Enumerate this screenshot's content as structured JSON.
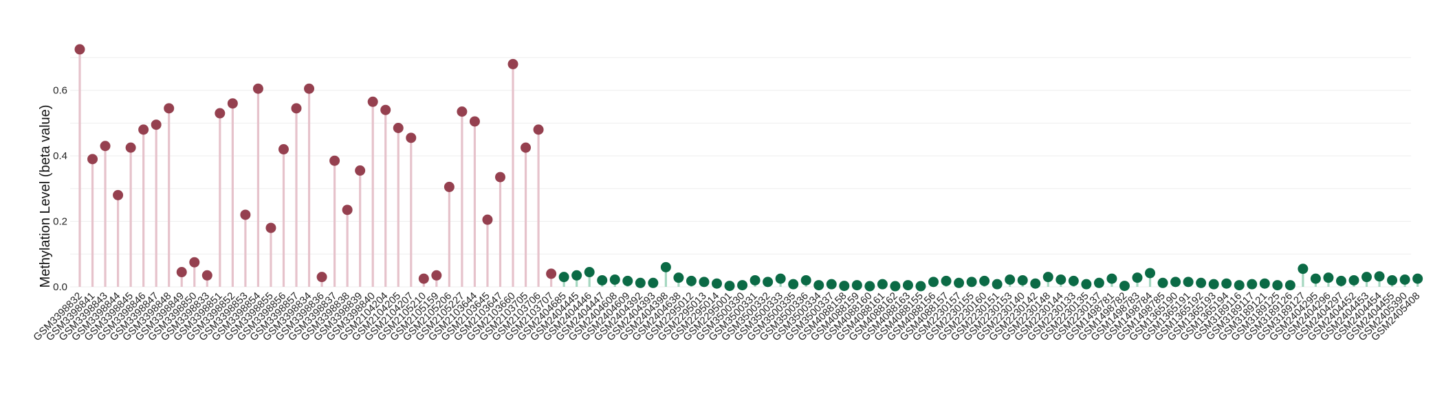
{
  "chart_data": {
    "type": "lollipop",
    "ylabel": "Methylation Level (beta value)",
    "ylim": [
      0,
      0.75
    ],
    "yticks": [
      "0.0",
      "0.2",
      "0.4",
      "0.6"
    ],
    "grid": true,
    "colors": {
      "group_a_dot": "#95404f",
      "group_a_stem": "#e6c2cb",
      "group_b_dot": "#0b6a45",
      "group_b_stem": "#a5d7c0",
      "grid": "#eeeeee"
    },
    "series": [
      {
        "color_key": "group_a",
        "points": [
          {
            "x": "GSM3398832",
            "y": 0.725
          },
          {
            "x": "GSM3398841",
            "y": 0.39
          },
          {
            "x": "GSM3398843",
            "y": 0.43
          },
          {
            "x": "GSM3398844",
            "y": 0.28
          },
          {
            "x": "GSM3398845",
            "y": 0.425
          },
          {
            "x": "GSM3398846",
            "y": 0.48
          },
          {
            "x": "GSM3398847",
            "y": 0.495
          },
          {
            "x": "GSM3398848",
            "y": 0.545
          },
          {
            "x": "GSM3398849",
            "y": 0.045
          },
          {
            "x": "GSM3398850",
            "y": 0.075
          },
          {
            "x": "GSM3398833",
            "y": 0.035
          },
          {
            "x": "GSM3398851",
            "y": 0.53
          },
          {
            "x": "GSM3398852",
            "y": 0.56
          },
          {
            "x": "GSM3398853",
            "y": 0.22
          },
          {
            "x": "GSM3398854",
            "y": 0.605
          },
          {
            "x": "GSM3398855",
            "y": 0.18
          },
          {
            "x": "GSM3398856",
            "y": 0.42
          },
          {
            "x": "GSM3398857",
            "y": 0.545
          },
          {
            "x": "GSM3398834",
            "y": 0.605
          },
          {
            "x": "GSM3398836",
            "y": 0.03
          },
          {
            "x": "GSM3398837",
            "y": 0.385
          },
          {
            "x": "GSM3398838",
            "y": 0.235
          },
          {
            "x": "GSM3398839",
            "y": 0.355
          },
          {
            "x": "GSM3398840",
            "y": 0.565
          },
          {
            "x": "GSM2104204",
            "y": 0.54
          },
          {
            "x": "GSM2104205",
            "y": 0.485
          },
          {
            "x": "GSM2104207",
            "y": 0.455
          },
          {
            "x": "GSM2105210",
            "y": 0.025
          },
          {
            "x": "GSM2105159",
            "y": 0.035
          },
          {
            "x": "GSM2105206",
            "y": 0.305
          },
          {
            "x": "GSM2105227",
            "y": 0.535
          },
          {
            "x": "GSM2103644",
            "y": 0.505
          },
          {
            "x": "GSM2103645",
            "y": 0.205
          },
          {
            "x": "GSM2103647",
            "y": 0.335
          },
          {
            "x": "GSM2103660",
            "y": 0.68
          },
          {
            "x": "GSM2103705",
            "y": 0.425
          },
          {
            "x": "GSM2103706",
            "y": 0.48
          },
          {
            "x": "GSM2103707",
            "y": 0.04
          }
        ]
      },
      {
        "color_key": "group_b",
        "points": [
          {
            "x": "GSM2404685",
            "y": 0.03
          },
          {
            "x": "GSM2404445",
            "y": 0.035
          },
          {
            "x": "GSM2404446",
            "y": 0.045
          },
          {
            "x": "GSM2404447",
            "y": 0.02
          },
          {
            "x": "GSM2404608",
            "y": 0.022
          },
          {
            "x": "GSM2404609",
            "y": 0.018
          },
          {
            "x": "GSM2404392",
            "y": 0.012
          },
          {
            "x": "GSM2404393",
            "y": 0.012
          },
          {
            "x": "GSM2404398",
            "y": 0.06
          },
          {
            "x": "GSM2404638",
            "y": 0.028
          },
          {
            "x": "GSM2295012",
            "y": 0.018
          },
          {
            "x": "GSM2295013",
            "y": 0.015
          },
          {
            "x": "GSM2295014",
            "y": 0.01
          },
          {
            "x": "GSM2295001",
            "y": 0.003
          },
          {
            "x": "GSM3500330",
            "y": 0.005
          },
          {
            "x": "GSM3500331",
            "y": 0.02
          },
          {
            "x": "GSM3500332",
            "y": 0.015
          },
          {
            "x": "GSM3500333",
            "y": 0.025
          },
          {
            "x": "GSM3500335",
            "y": 0.008
          },
          {
            "x": "GSM3500336",
            "y": 0.02
          },
          {
            "x": "GSM3500334",
            "y": 0.005
          },
          {
            "x": "GSM3500337",
            "y": 0.008
          },
          {
            "x": "GSM4088158",
            "y": 0.003
          },
          {
            "x": "GSM4088159",
            "y": 0.005
          },
          {
            "x": "GSM4088160",
            "y": 0.002
          },
          {
            "x": "GSM4088161",
            "y": 0.008
          },
          {
            "x": "GSM4088162",
            "y": 0.002
          },
          {
            "x": "GSM4088163",
            "y": 0.005
          },
          {
            "x": "GSM4088155",
            "y": 0.002
          },
          {
            "x": "GSM4088156",
            "y": 0.015
          },
          {
            "x": "GSM4088157",
            "y": 0.018
          },
          {
            "x": "GSM2230157",
            "y": 0.012
          },
          {
            "x": "GSM2230155",
            "y": 0.015
          },
          {
            "x": "GSM2230160",
            "y": 0.018
          },
          {
            "x": "GSM2230151",
            "y": 0.008
          },
          {
            "x": "GSM2230153",
            "y": 0.022
          },
          {
            "x": "GSM2230140",
            "y": 0.02
          },
          {
            "x": "GSM2230142",
            "y": 0.01
          },
          {
            "x": "GSM2230148",
            "y": 0.03
          },
          {
            "x": "GSM2230144",
            "y": 0.022
          },
          {
            "x": "GSM2230133",
            "y": 0.018
          },
          {
            "x": "GSM2230135",
            "y": 0.008
          },
          {
            "x": "GSM2230137",
            "y": 0.012
          },
          {
            "x": "GSM1498781",
            "y": 0.025
          },
          {
            "x": "GSM1498782",
            "y": 0.003
          },
          {
            "x": "GSM1498783",
            "y": 0.028
          },
          {
            "x": "GSM1498784",
            "y": 0.042
          },
          {
            "x": "GSM1498785",
            "y": 0.012
          },
          {
            "x": "GSM1365190",
            "y": 0.015
          },
          {
            "x": "GSM1365191",
            "y": 0.015
          },
          {
            "x": "GSM1365192",
            "y": 0.012
          },
          {
            "x": "GSM1365193",
            "y": 0.008
          },
          {
            "x": "GSM1365194",
            "y": 0.01
          },
          {
            "x": "GSM3189116",
            "y": 0.005
          },
          {
            "x": "GSM3189117",
            "y": 0.008
          },
          {
            "x": "GSM3189121",
            "y": 0.01
          },
          {
            "x": "GSM3189125",
            "y": 0.005
          },
          {
            "x": "GSM3189126",
            "y": 0.005
          },
          {
            "x": "GSM3189127",
            "y": 0.055
          },
          {
            "x": "GSM2404295",
            "y": 0.025
          },
          {
            "x": "GSM2404296",
            "y": 0.028
          },
          {
            "x": "GSM2404297",
            "y": 0.018
          },
          {
            "x": "GSM2404452",
            "y": 0.02
          },
          {
            "x": "GSM2404453",
            "y": 0.03
          },
          {
            "x": "GSM2404454",
            "y": 0.032
          },
          {
            "x": "GSM2404455",
            "y": 0.02
          },
          {
            "x": "GSM2405390",
            "y": 0.022
          },
          {
            "x": "GSM2405408",
            "y": 0.025
          }
        ]
      }
    ]
  }
}
